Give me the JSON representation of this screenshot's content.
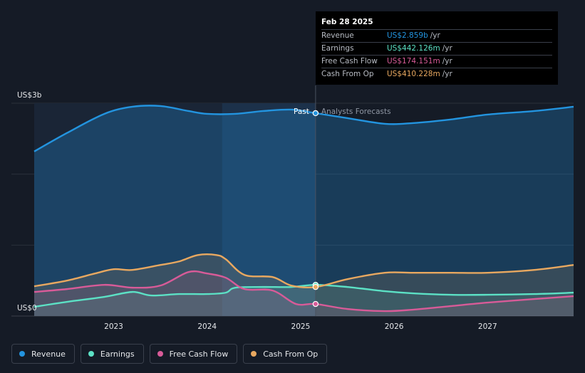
{
  "tooltip": {
    "date": "Feb 28 2025",
    "rows": [
      {
        "label": "Revenue",
        "value": "US$2.859b",
        "unit": "/yr",
        "color": "#2394df"
      },
      {
        "label": "Earnings",
        "value": "US$442.126m",
        "unit": "/yr",
        "color": "#5ce1c5"
      },
      {
        "label": "Free Cash Flow",
        "value": "US$174.151m",
        "unit": "/yr",
        "color": "#d85b98"
      },
      {
        "label": "Cash From Op",
        "value": "US$410.228m",
        "unit": "/yr",
        "color": "#e8a860"
      }
    ]
  },
  "chart_data": {
    "type": "line",
    "title": "",
    "xlabel": "",
    "ylabel": "",
    "y_unit": "US$ b",
    "ylim": [
      0,
      3
    ],
    "xlim": [
      2022.15,
      2027.92
    ],
    "y_tick_labels": [
      {
        "value": 3,
        "label": "US$3b"
      },
      {
        "value": 0,
        "label": "US$0"
      }
    ],
    "x_ticks": [
      {
        "value": 2023,
        "label": "2023"
      },
      {
        "value": 2024,
        "label": "2024"
      },
      {
        "value": 2025,
        "label": "2025"
      },
      {
        "value": 2026,
        "label": "2026"
      },
      {
        "value": 2027,
        "label": "2027"
      }
    ],
    "past_label": "Past",
    "forecast_label": "Analysts Forecasts",
    "divider_x": 2025.16,
    "highlight_start_x": 2024.16,
    "series": [
      {
        "name": "Revenue",
        "color": "#2394df",
        "x": [
          2022.15,
          2022.5,
          2022.9,
          2023.2,
          2023.5,
          2023.8,
          2024.0,
          2024.3,
          2024.6,
          2024.9,
          2025.16,
          2025.5,
          2025.9,
          2026.2,
          2026.6,
          2027.0,
          2027.5,
          2027.92
        ],
        "y": [
          2.32,
          2.58,
          2.85,
          2.95,
          2.96,
          2.89,
          2.85,
          2.85,
          2.89,
          2.91,
          2.86,
          2.79,
          2.71,
          2.72,
          2.77,
          2.84,
          2.89,
          2.95
        ]
      },
      {
        "name": "Earnings",
        "color": "#5ce1c5",
        "x": [
          2022.15,
          2022.5,
          2022.9,
          2023.2,
          2023.4,
          2023.7,
          2024.0,
          2024.2,
          2024.3,
          2024.6,
          2024.9,
          2025.16,
          2025.5,
          2025.9,
          2026.2,
          2026.6,
          2027.0,
          2027.5,
          2027.92
        ],
        "y": [
          0.13,
          0.2,
          0.27,
          0.34,
          0.29,
          0.31,
          0.31,
          0.33,
          0.4,
          0.41,
          0.41,
          0.44,
          0.41,
          0.35,
          0.32,
          0.3,
          0.3,
          0.31,
          0.33
        ]
      },
      {
        "name": "Free Cash Flow",
        "color": "#d85b98",
        "x": [
          2022.15,
          2022.5,
          2022.9,
          2023.2,
          2023.5,
          2023.8,
          2024.0,
          2024.2,
          2024.4,
          2024.7,
          2024.95,
          2025.16,
          2025.5,
          2025.9,
          2026.2,
          2026.6,
          2027.0,
          2027.5,
          2027.92
        ],
        "y": [
          0.34,
          0.38,
          0.44,
          0.4,
          0.43,
          0.62,
          0.6,
          0.54,
          0.38,
          0.36,
          0.17,
          0.17,
          0.1,
          0.07,
          0.09,
          0.14,
          0.19,
          0.24,
          0.28
        ]
      },
      {
        "name": "Cash From Op",
        "color": "#e8a860",
        "x": [
          2022.15,
          2022.5,
          2022.8,
          2023.0,
          2023.2,
          2023.5,
          2023.7,
          2023.9,
          2024.1,
          2024.2,
          2024.4,
          2024.7,
          2024.9,
          2025.16,
          2025.5,
          2025.9,
          2026.2,
          2026.6,
          2027.0,
          2027.5,
          2027.92
        ],
        "y": [
          0.42,
          0.5,
          0.6,
          0.66,
          0.65,
          0.72,
          0.77,
          0.86,
          0.86,
          0.8,
          0.58,
          0.55,
          0.43,
          0.41,
          0.52,
          0.61,
          0.61,
          0.61,
          0.61,
          0.65,
          0.72
        ]
      }
    ]
  },
  "legend": [
    {
      "label": "Revenue",
      "color": "#2394df"
    },
    {
      "label": "Earnings",
      "color": "#5ce1c5"
    },
    {
      "label": "Free Cash Flow",
      "color": "#d85b98"
    },
    {
      "label": "Cash From Op",
      "color": "#e8a860"
    }
  ]
}
